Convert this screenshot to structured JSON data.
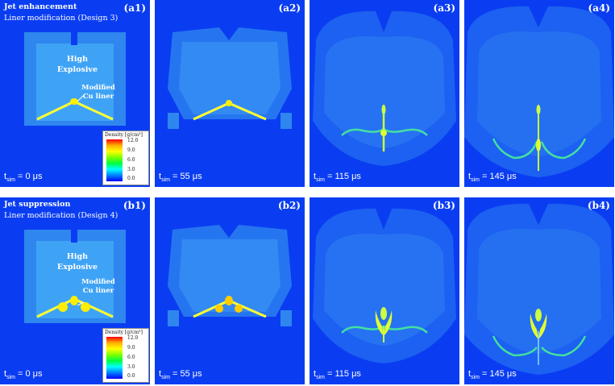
{
  "row_a": {
    "heading": "Jet enhancement",
    "subheading": "Liner modification (Design 3)",
    "panels": [
      {
        "label": "(a1)",
        "t_prefix": "t",
        "t_sub": "sim",
        "t_value": " = 0 μs"
      },
      {
        "label": "(a2)",
        "t_prefix": "t",
        "t_sub": "sim",
        "t_value": " = 55 μs"
      },
      {
        "label": "(a3)",
        "t_prefix": "t",
        "t_sub": "sim",
        "t_value": " = 115 μs"
      },
      {
        "label": "(a4)",
        "t_prefix": "t",
        "t_sub": "sim",
        "t_value": " = 145 μs"
      }
    ]
  },
  "row_b": {
    "heading": "Jet suppression",
    "subheading": "Liner modification (Design 4)",
    "panels": [
      {
        "label": "(b1)",
        "t_prefix": "t",
        "t_sub": "sim",
        "t_value": " = 0 μs"
      },
      {
        "label": "(b2)",
        "t_prefix": "t",
        "t_sub": "sim",
        "t_value": " = 55 μs"
      },
      {
        "label": "(b3)",
        "t_prefix": "t",
        "t_sub": "sim",
        "t_value": " = 115 μs"
      },
      {
        "label": "(b4)",
        "t_prefix": "t",
        "t_sub": "sim",
        "t_value": " = 145 μs"
      }
    ]
  },
  "annotations": {
    "he_line1": "High",
    "he_line2": "Explosive",
    "liner_line1": "Modified",
    "liner_line2": "Cu liner"
  },
  "colorbar": {
    "title": "Density [g/cm³]",
    "ticks": [
      "12.0",
      "9.0",
      "6.0",
      "3.0",
      "0.0"
    ]
  },
  "colors": {
    "background": "#0a3df2",
    "explosive": "#3fa3f5",
    "liner": "#ffff00"
  }
}
